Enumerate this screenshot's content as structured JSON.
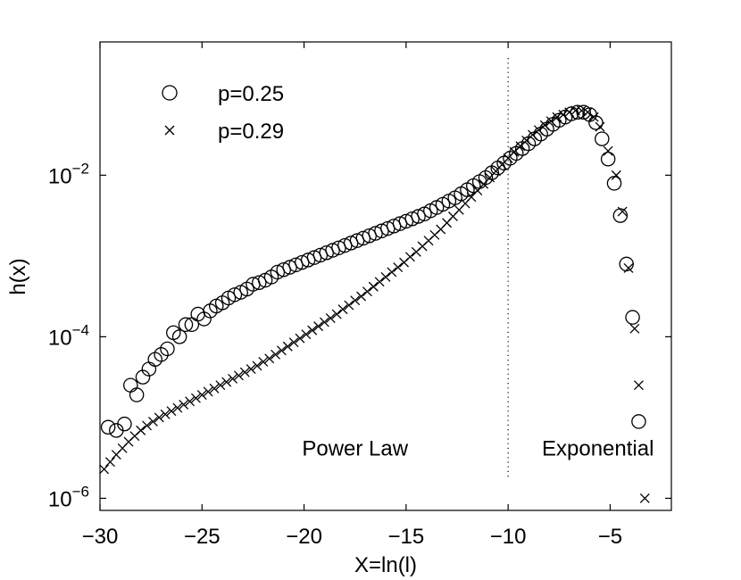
{
  "chart_data": {
    "type": "scatter",
    "title": "",
    "xlabel": "X=ln(l)",
    "ylabel": "h(x)",
    "xlim": [
      -30,
      -2
    ],
    "ylim_log10": [
      -6.15,
      -0.35
    ],
    "yscale": "log",
    "xticks": [
      -30,
      -25,
      -20,
      -15,
      -10,
      -5
    ],
    "xtick_labels": [
      "−30",
      "−25",
      "−20",
      "−15",
      "−10",
      "−5"
    ],
    "yticks_log10": [
      -6,
      -4,
      -2
    ],
    "ytick_labels": [
      {
        "base": "10",
        "exp": "−6"
      },
      {
        "base": "10",
        "exp": "−4"
      },
      {
        "base": "10",
        "exp": "−2"
      }
    ],
    "grid": false,
    "legend_position": "top-left",
    "divider_x": -10,
    "annotations": [
      {
        "text": "Power Law",
        "x": -17.5,
        "y_log10": -5.38
      },
      {
        "text": "Exponential",
        "x": -5.6,
        "y_log10": -5.38
      }
    ],
    "series": [
      {
        "name": "p=0.25",
        "marker": "circle",
        "x": [
          -29.6,
          -29.2,
          -28.8,
          -28.5,
          -28.2,
          -27.9,
          -27.6,
          -27.3,
          -27.0,
          -26.7,
          -26.4,
          -26.1,
          -25.8,
          -25.5,
          -25.2,
          -24.9,
          -24.6,
          -24.3,
          -24.0,
          -23.7,
          -23.4,
          -23.1,
          -22.8,
          -22.5,
          -22.2,
          -21.9,
          -21.6,
          -21.3,
          -21.0,
          -20.7,
          -20.4,
          -20.1,
          -19.8,
          -19.5,
          -19.2,
          -18.9,
          -18.6,
          -18.3,
          -18.0,
          -17.7,
          -17.4,
          -17.1,
          -16.8,
          -16.5,
          -16.2,
          -15.9,
          -15.6,
          -15.3,
          -15.0,
          -14.7,
          -14.4,
          -14.1,
          -13.8,
          -13.5,
          -13.2,
          -12.9,
          -12.6,
          -12.3,
          -12.0,
          -11.7,
          -11.4,
          -11.1,
          -10.8,
          -10.5,
          -10.2,
          -9.9,
          -9.6,
          -9.3,
          -9.0,
          -8.7,
          -8.4,
          -8.1,
          -7.8,
          -7.5,
          -7.2,
          -6.9,
          -6.6,
          -6.3,
          -6.0,
          -5.7,
          -5.4,
          -5.1,
          -4.8,
          -4.5,
          -4.2,
          -3.9,
          -3.6
        ],
        "y_log10": [
          -5.12,
          -5.16,
          -5.08,
          -4.6,
          -4.72,
          -4.5,
          -4.4,
          -4.28,
          -4.22,
          -4.15,
          -3.95,
          -4.0,
          -3.85,
          -3.85,
          -3.72,
          -3.78,
          -3.68,
          -3.62,
          -3.58,
          -3.52,
          -3.48,
          -3.45,
          -3.41,
          -3.35,
          -3.33,
          -3.3,
          -3.26,
          -3.2,
          -3.17,
          -3.14,
          -3.11,
          -3.08,
          -3.05,
          -3.02,
          -2.99,
          -2.96,
          -2.93,
          -2.9,
          -2.87,
          -2.84,
          -2.81,
          -2.78,
          -2.75,
          -2.72,
          -2.69,
          -2.66,
          -2.63,
          -2.6,
          -2.57,
          -2.54,
          -2.51,
          -2.48,
          -2.44,
          -2.4,
          -2.36,
          -2.32,
          -2.28,
          -2.23,
          -2.18,
          -2.13,
          -2.08,
          -2.03,
          -1.97,
          -1.91,
          -1.85,
          -1.79,
          -1.73,
          -1.67,
          -1.61,
          -1.55,
          -1.49,
          -1.43,
          -1.37,
          -1.32,
          -1.28,
          -1.24,
          -1.22,
          -1.22,
          -1.25,
          -1.35,
          -1.55,
          -1.8,
          -2.1,
          -2.5,
          -3.1,
          -3.76,
          -5.05
        ]
      },
      {
        "name": "p=0.29",
        "marker": "cross",
        "x": [
          -29.8,
          -29.5,
          -29.2,
          -28.9,
          -28.6,
          -28.3,
          -28.0,
          -27.7,
          -27.4,
          -27.1,
          -26.8,
          -26.5,
          -26.2,
          -25.9,
          -25.6,
          -25.3,
          -25.0,
          -24.7,
          -24.4,
          -24.1,
          -23.8,
          -23.5,
          -23.2,
          -22.9,
          -22.6,
          -22.3,
          -22.0,
          -21.7,
          -21.4,
          -21.1,
          -20.8,
          -20.5,
          -20.2,
          -19.9,
          -19.6,
          -19.3,
          -19.0,
          -18.7,
          -18.4,
          -18.1,
          -17.8,
          -17.5,
          -17.2,
          -16.9,
          -16.6,
          -16.3,
          -16.0,
          -15.7,
          -15.4,
          -15.1,
          -14.8,
          -14.5,
          -14.2,
          -13.9,
          -13.6,
          -13.3,
          -13.0,
          -12.7,
          -12.4,
          -12.1,
          -11.8,
          -11.5,
          -11.2,
          -10.9,
          -10.6,
          -10.3,
          -10.0,
          -9.7,
          -9.4,
          -9.1,
          -8.8,
          -8.5,
          -8.2,
          -7.9,
          -7.6,
          -7.3,
          -7.0,
          -6.7,
          -6.4,
          -6.1,
          -5.8,
          -5.5,
          -5.1,
          -4.7,
          -4.4,
          -4.1,
          -3.8,
          -3.6,
          -3.3
        ],
        "y_log10": [
          -5.64,
          -5.55,
          -5.46,
          -5.38,
          -5.3,
          -5.23,
          -5.16,
          -5.1,
          -5.05,
          -5.0,
          -4.96,
          -4.92,
          -4.88,
          -4.84,
          -4.8,
          -4.76,
          -4.72,
          -4.68,
          -4.64,
          -4.6,
          -4.56,
          -4.52,
          -4.48,
          -4.44,
          -4.4,
          -4.36,
          -4.31,
          -4.27,
          -4.22,
          -4.17,
          -4.12,
          -4.07,
          -4.02,
          -3.97,
          -3.92,
          -3.87,
          -3.82,
          -3.77,
          -3.72,
          -3.66,
          -3.61,
          -3.55,
          -3.5,
          -3.44,
          -3.38,
          -3.32,
          -3.26,
          -3.2,
          -3.14,
          -3.08,
          -3.01,
          -2.95,
          -2.88,
          -2.81,
          -2.74,
          -2.67,
          -2.59,
          -2.51,
          -2.43,
          -2.35,
          -2.27,
          -2.19,
          -2.11,
          -2.03,
          -1.95,
          -1.87,
          -1.79,
          -1.71,
          -1.64,
          -1.57,
          -1.5,
          -1.44,
          -1.38,
          -1.33,
          -1.28,
          -1.25,
          -1.22,
          -1.2,
          -1.2,
          -1.22,
          -1.28,
          -1.4,
          -1.7,
          -2.0,
          -2.45,
          -3.15,
          -3.9,
          -4.6,
          -6.0
        ]
      }
    ]
  }
}
